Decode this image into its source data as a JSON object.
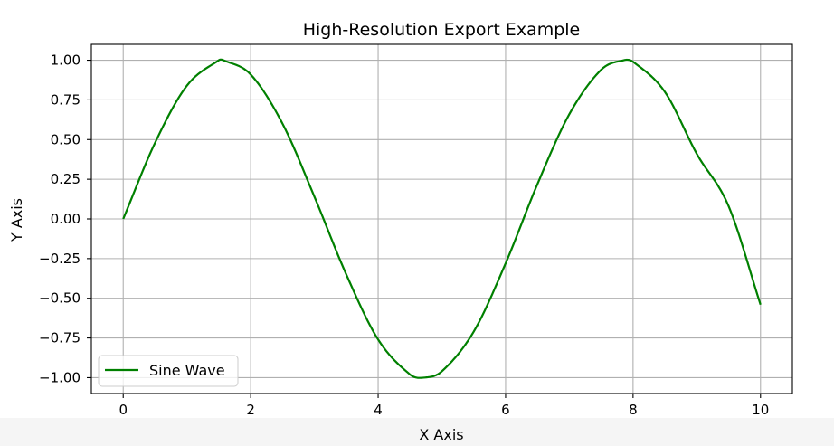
{
  "chart_data": {
    "type": "line",
    "title": "High-Resolution Export Example",
    "xlabel": "X Axis",
    "ylabel": "Y Axis",
    "xlim": [
      -0.5,
      10.5
    ],
    "ylim": [
      -1.1,
      1.1
    ],
    "xticks": [
      0,
      2,
      4,
      6,
      8,
      10
    ],
    "xtick_labels": [
      "0",
      "2",
      "4",
      "6",
      "8",
      "10"
    ],
    "yticks": [
      1.0,
      0.75,
      0.5,
      0.25,
      0.0,
      -0.25,
      -0.5,
      -0.75,
      -1.0
    ],
    "ytick_labels": [
      "1.00",
      "0.75",
      "0.50",
      "0.25",
      "0.00",
      "−0.25",
      "−0.50",
      "−0.75",
      "−1.00"
    ],
    "grid": true,
    "legend_position": "lower-left",
    "series": [
      {
        "name": "Sine Wave",
        "color": "#008000",
        "x": [
          0,
          0.5,
          1.0,
          1.5,
          1.571,
          2.0,
          2.5,
          3.0,
          3.5,
          4.0,
          4.5,
          4.712,
          5.0,
          5.5,
          6.0,
          6.5,
          7.0,
          7.5,
          7.854,
          8.0,
          8.5,
          9.0,
          9.5,
          10.0
        ],
        "y": [
          0.0,
          0.48,
          0.84,
          1.0,
          1.0,
          0.91,
          0.6,
          0.14,
          -0.35,
          -0.76,
          -0.98,
          -1.0,
          -0.96,
          -0.71,
          -0.28,
          0.22,
          0.66,
          0.94,
          1.0,
          0.99,
          0.8,
          0.41,
          0.08,
          -0.54
        ]
      }
    ]
  }
}
